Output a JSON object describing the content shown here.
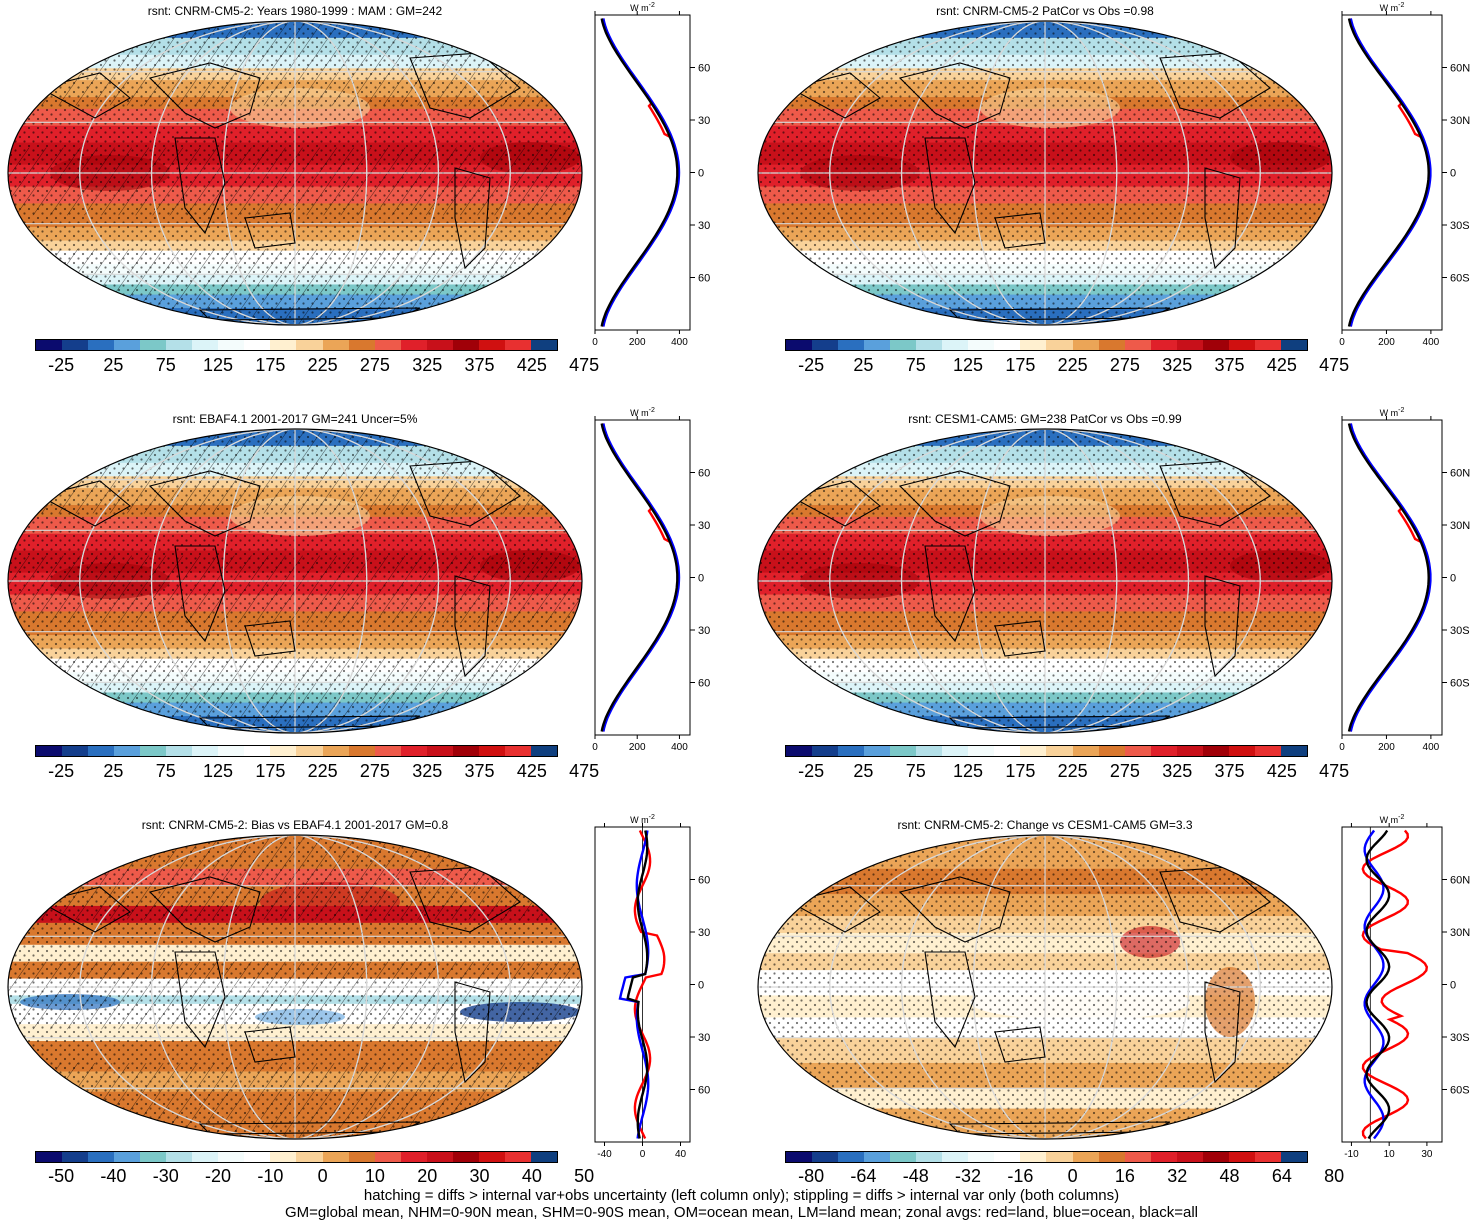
{
  "panels": [
    {
      "title": "rsnt: CNRM-CM5-2: Years 1980-1999 : MAM : GM=242",
      "type": "mean",
      "colorbar_labels": [
        "-25",
        "25",
        "75",
        "125",
        "175",
        "225",
        "275",
        "325",
        "375",
        "425",
        "475"
      ],
      "zonal_ticks": [
        "0",
        "200",
        "400"
      ],
      "hatching": true
    },
    {
      "title": "rsnt: CNRM-CM5-2 PatCor vs Obs =0.98",
      "type": "mean",
      "colorbar_labels": [
        "-25",
        "25",
        "75",
        "125",
        "175",
        "225",
        "275",
        "325",
        "375",
        "425",
        "475"
      ],
      "zonal_ticks": [
        "0",
        "200",
        "400"
      ],
      "hatching": false
    },
    {
      "title": "rsnt: EBAF4.1 2001-2017 GM=241 Uncer=5%",
      "type": "mean",
      "colorbar_labels": [
        "-25",
        "25",
        "75",
        "125",
        "175",
        "225",
        "275",
        "325",
        "375",
        "425",
        "475"
      ],
      "zonal_ticks": [
        "0",
        "200",
        "400"
      ],
      "hatching": true
    },
    {
      "title": "rsnt: CESM1-CAM5: GM=238 PatCor vs Obs =0.99",
      "type": "mean",
      "colorbar_labels": [
        "-25",
        "25",
        "75",
        "125",
        "175",
        "225",
        "275",
        "325",
        "375",
        "425",
        "475"
      ],
      "zonal_ticks": [
        "0",
        "200",
        "400"
      ],
      "hatching": false
    },
    {
      "title": "rsnt: CNRM-CM5-2: Bias vs EBAF4.1 2001-2017 GM=0.8",
      "type": "bias",
      "colorbar_labels": [
        "-50",
        "-40",
        "-30",
        "-20",
        "-10",
        "0",
        "10",
        "20",
        "30",
        "40",
        "50"
      ],
      "zonal_ticks": [
        "-40",
        "0",
        "40"
      ],
      "hatching": true
    },
    {
      "title": "rsnt: CNRM-CM5-2: Change vs CESM1-CAM5 GM=3.3",
      "type": "change",
      "colorbar_labels": [
        "-80",
        "-64",
        "-48",
        "-32",
        "-16",
        "0",
        "16",
        "32",
        "48",
        "64",
        "80"
      ],
      "zonal_ticks": [
        "-10",
        "10",
        "30"
      ],
      "hatching": false
    }
  ],
  "zonal_unit": "W m",
  "zonal_unit_sup": "-2",
  "lat_labels": [
    "60N",
    "30N",
    "0",
    "30S",
    "60S"
  ],
  "palette": [
    "#0b0b6e",
    "#143e8c",
    "#2a6fbf",
    "#5aa0dc",
    "#7cc8c8",
    "#b4e0e8",
    "#dcf4f8",
    "#f4fcfc",
    "#ffffff",
    "#fff0d0",
    "#f9d29a",
    "#eba557",
    "#d9782e",
    "#ee5a4a",
    "#e0202a",
    "#c8101a",
    "#a00008",
    "#d01010",
    "#e83030",
    "#0f3f7f"
  ],
  "colors": {
    "zonal_land": "#ff0000",
    "zonal_ocean": "#0000ff",
    "zonal_all": "#000000"
  },
  "footer": [
    "hatching = diffs > internal var+obs uncertainty (left column only); stippling = diffs > internal var only (both columns)",
    "GM=global mean, NHM=0-90N mean, SHM=0-90S mean, OM=ocean mean, LM=land mean; zonal avgs: red=land, blue=ocean, black=all"
  ]
}
